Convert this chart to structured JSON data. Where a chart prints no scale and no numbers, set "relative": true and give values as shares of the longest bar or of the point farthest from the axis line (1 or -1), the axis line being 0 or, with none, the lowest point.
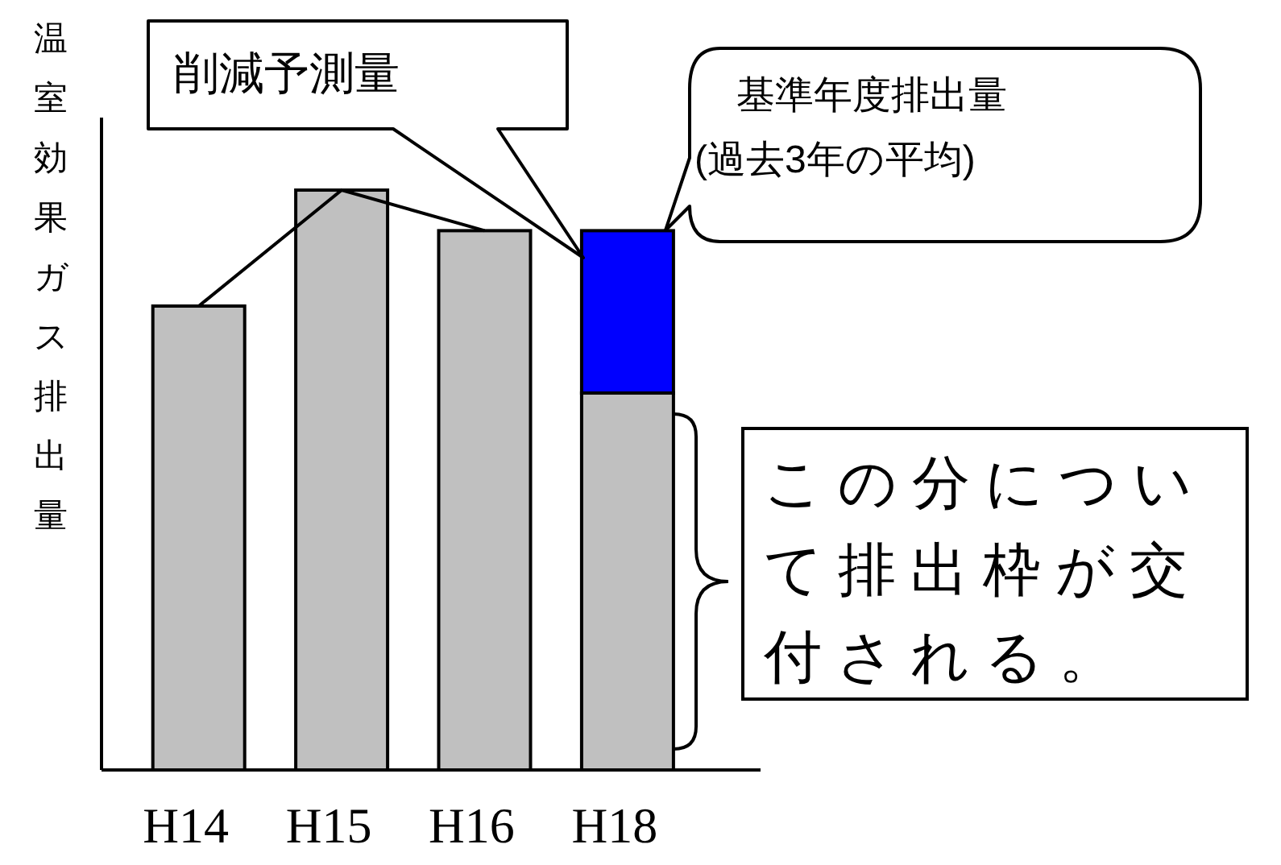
{
  "chart_data": {
    "type": "bar",
    "stacked": true,
    "relative": true,
    "ylabel": "温室効果ガス排出量",
    "categories": [
      "H14",
      "H15",
      "H16",
      "H18"
    ],
    "series": [
      {
        "color": "#c0c0c0",
        "values": [
          0.8,
          1,
          0.93,
          0.65
        ]
      },
      {
        "color": "#0000ff",
        "values": [
          null,
          null,
          null,
          0.28
        ]
      }
    ],
    "annotations": [
      "削減予測量",
      "基準年度排出量\n(過去3年の平均)",
      "この分について排出枠が交付される。"
    ]
  }
}
